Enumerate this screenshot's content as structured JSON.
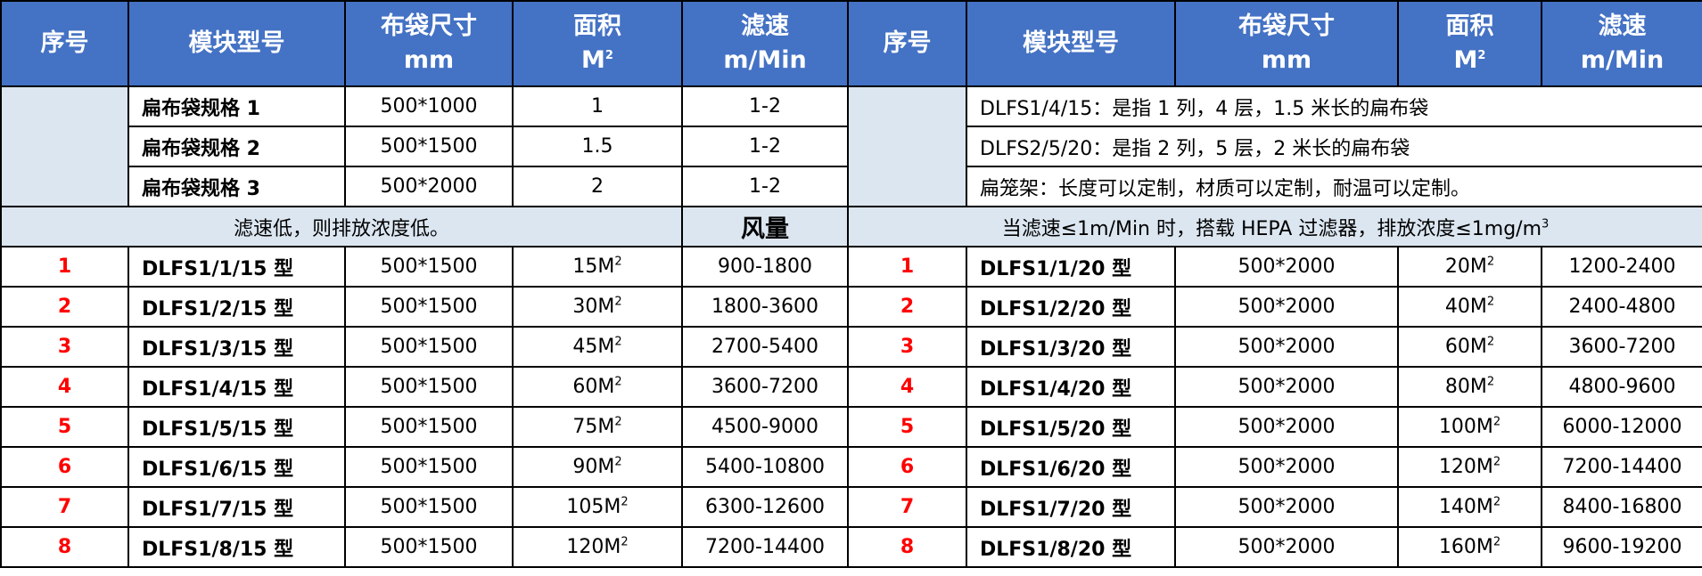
{
  "header": {
    "seq": "序号",
    "model": "模块型号",
    "bag_size": "布袋尺寸",
    "bag_size_unit": "mm",
    "area": "面积",
    "area_unit": "M",
    "area_unit_sup": "2",
    "speed": "滤速",
    "speed_unit": "m/Min"
  },
  "specs": [
    {
      "name": "扁布袋规格 1",
      "size": "500*1000",
      "area": "1",
      "speed": "1-2",
      "note": "DLFS1/4/15：是指 1 列，4 层，1.5 米长的扁布袋"
    },
    {
      "name": "扁布袋规格 2",
      "size": "500*1500",
      "area": "1.5",
      "speed": "1-2",
      "note": "DLFS2/5/20：是指 2 列，5 层，2 米长的扁布袋"
    },
    {
      "name": "扁布袋规格 3",
      "size": "500*2000",
      "area": "2",
      "speed": "1-2",
      "note": "扁笼架：长度可以定制，材质可以定制，耐温可以定制。"
    }
  ],
  "band": {
    "left_note": "滤速低，则排放浓度低。",
    "airflow": "风量",
    "right_note": "当滤速≤1m/Min 时，搭载 HEPA 过滤器，排放浓度≤1mg/m",
    "right_note_sup": "3"
  },
  "left_rows": [
    {
      "seq": "1",
      "model": "DLFS1/1/15 型",
      "size": "500*1500",
      "area": "15M",
      "airflow": "900-1800"
    },
    {
      "seq": "2",
      "model": "DLFS1/2/15 型",
      "size": "500*1500",
      "area": "30M",
      "airflow": "1800-3600"
    },
    {
      "seq": "3",
      "model": "DLFS1/3/15 型",
      "size": "500*1500",
      "area": "45M",
      "airflow": "2700-5400"
    },
    {
      "seq": "4",
      "model": "DLFS1/4/15 型",
      "size": "500*1500",
      "area": "60M",
      "airflow": "3600-7200"
    },
    {
      "seq": "5",
      "model": "DLFS1/5/15 型",
      "size": "500*1500",
      "area": "75M",
      "airflow": "4500-9000"
    },
    {
      "seq": "6",
      "model": "DLFS1/6/15 型",
      "size": "500*1500",
      "area": "90M",
      "airflow": "5400-10800"
    },
    {
      "seq": "7",
      "model": "DLFS1/7/15 型",
      "size": "500*1500",
      "area": "105M",
      "airflow": "6300-12600"
    },
    {
      "seq": "8",
      "model": "DLFS1/8/15 型",
      "size": "500*1500",
      "area": "120M",
      "airflow": "7200-14400"
    }
  ],
  "right_rows": [
    {
      "seq": "1",
      "model": "DLFS1/1/20 型",
      "size": "500*2000",
      "area": "20M",
      "airflow": "1200-2400"
    },
    {
      "seq": "2",
      "model": "DLFS1/2/20 型",
      "size": "500*2000",
      "area": "40M",
      "airflow": "2400-4800"
    },
    {
      "seq": "3",
      "model": "DLFS1/3/20 型",
      "size": "500*2000",
      "area": "60M",
      "airflow": "3600-7200"
    },
    {
      "seq": "4",
      "model": "DLFS1/4/20 型",
      "size": "500*2000",
      "area": "80M",
      "airflow": "4800-9600"
    },
    {
      "seq": "5",
      "model": "DLFS1/5/20 型",
      "size": "500*2000",
      "area": "100M",
      "airflow": "6000-12000"
    },
    {
      "seq": "6",
      "model": "DLFS1/6/20 型",
      "size": "500*2000",
      "area": "120M",
      "airflow": "7200-14400"
    },
    {
      "seq": "7",
      "model": "DLFS1/7/20 型",
      "size": "500*2000",
      "area": "140M",
      "airflow": "8400-16800"
    },
    {
      "seq": "8",
      "model": "DLFS1/8/20 型",
      "size": "500*2000",
      "area": "160M",
      "airflow": "9600-19200"
    }
  ],
  "area_sup": "2",
  "colors": {
    "header_bg": "#4472c4",
    "header_text": "#ffffff",
    "shade_bg": "#dce6f1",
    "seq_red": "#ff0000"
  }
}
